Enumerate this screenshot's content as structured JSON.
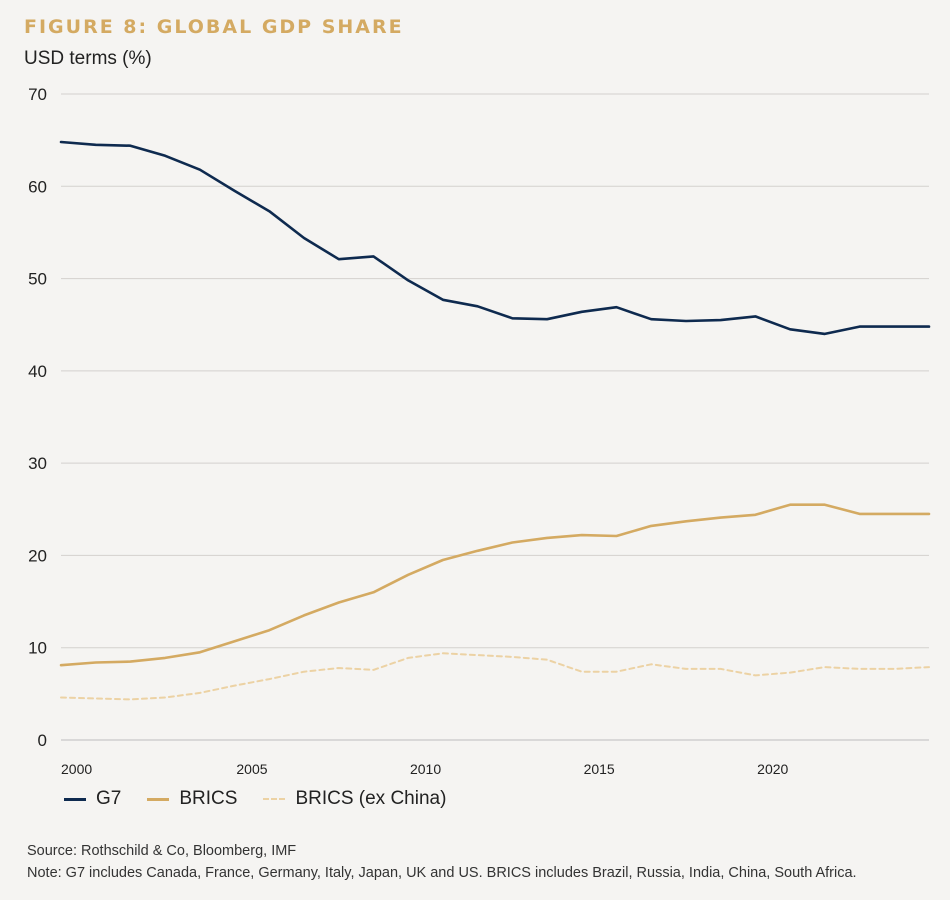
{
  "figure": {
    "title": "FIGURE 8: GLOBAL GDP SHARE",
    "subtitle": "USD terms (%)"
  },
  "legend": {
    "items": [
      {
        "label": "G7",
        "color": "#0e2a4f",
        "style": "solid"
      },
      {
        "label": "BRICS",
        "color": "#d4aa62",
        "style": "solid"
      },
      {
        "label": "BRICS (ex China)",
        "color": "#ecd2a4",
        "style": "dashed"
      }
    ]
  },
  "notes": {
    "source": "Source: Rothschild & Co, Bloomberg, IMF",
    "note": "Note: G7 includes Canada, France, Germany, Italy, Japan, UK and US. BRICS includes Brazil, Russia, India, China, South Africa."
  },
  "chart_data": {
    "type": "line",
    "title": "FIGURE 8: GLOBAL GDP SHARE",
    "ylabel": "USD terms (%)",
    "xlabel": "",
    "xlim": [
      1999.5,
      2024.5
    ],
    "ylim": [
      0,
      70
    ],
    "yticks": [
      0,
      10,
      20,
      30,
      40,
      50,
      60,
      70
    ],
    "xticks": [
      2000,
      2005,
      2010,
      2015,
      2020
    ],
    "grid": "horizontal",
    "legend_position": "bottom-left",
    "x": [
      1999.5,
      2000.5,
      2001.5,
      2002.5,
      2003.5,
      2004.5,
      2005.5,
      2006.5,
      2007.5,
      2008.5,
      2009.5,
      2010.5,
      2011.5,
      2012.5,
      2013.5,
      2014.5,
      2015.5,
      2016.5,
      2017.5,
      2018.5,
      2019.5,
      2020.5,
      2021.5,
      2022.5,
      2023.5,
      2024.5
    ],
    "series": [
      {
        "name": "G7",
        "color": "#0e2a4f",
        "style": "solid",
        "values": [
          64.8,
          64.5,
          64.4,
          63.3,
          61.8,
          59.5,
          57.3,
          54.4,
          52.1,
          52.4,
          49.8,
          47.7,
          47.0,
          45.7,
          45.6,
          46.4,
          46.9,
          45.6,
          45.4,
          45.5,
          45.9,
          44.5,
          44.0,
          44.8,
          44.8,
          44.8
        ]
      },
      {
        "name": "BRICS",
        "color": "#d4aa62",
        "style": "solid",
        "values": [
          8.1,
          8.4,
          8.5,
          8.9,
          9.5,
          10.7,
          11.9,
          13.5,
          14.9,
          16.0,
          17.9,
          19.5,
          20.5,
          21.4,
          21.9,
          22.2,
          22.1,
          23.2,
          23.7,
          24.1,
          24.4,
          25.5,
          25.5,
          24.5,
          24.5,
          24.5
        ]
      },
      {
        "name": "BRICS (ex China)",
        "color": "#ecd2a4",
        "style": "dashed",
        "values": [
          4.6,
          4.5,
          4.4,
          4.6,
          5.1,
          5.9,
          6.6,
          7.4,
          7.8,
          7.6,
          8.9,
          9.4,
          9.2,
          9.0,
          8.7,
          7.4,
          7.4,
          8.2,
          7.7,
          7.7,
          7.0,
          7.3,
          7.9,
          7.7,
          7.7,
          7.9
        ]
      }
    ]
  }
}
